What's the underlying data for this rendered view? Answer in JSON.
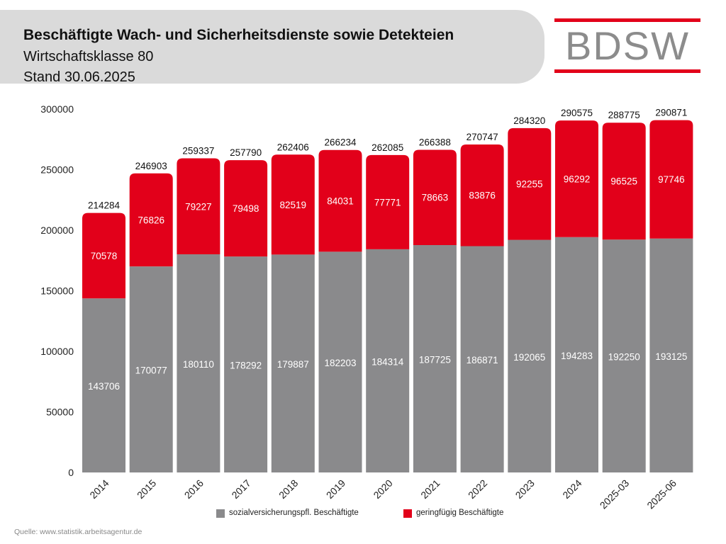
{
  "header": {
    "title": "Beschäftigte Wach- und Sicherheitsdienste sowie Detekteien",
    "subtitle": "Wirtschaftsklasse 80",
    "date": "Stand 30.06.2025"
  },
  "logo": {
    "text": "BDSW"
  },
  "source": "Quelle: www.statistik.arbeitsagentur.de",
  "colors": {
    "primary": "#8a8a8c",
    "secondary": "#e2001a",
    "header_bg": "#dadada"
  },
  "chart_data": {
    "type": "bar",
    "stacked": true,
    "title": "Beschäftigte Wach- und Sicherheitsdienste sowie Detekteien",
    "xlabel": "",
    "ylabel": "",
    "ylim": [
      0,
      300000
    ],
    "yticks": [
      0,
      50000,
      100000,
      150000,
      200000,
      250000,
      300000
    ],
    "grid": false,
    "legend_position": "bottom-center",
    "categories": [
      "2014",
      "2015",
      "2016",
      "2017",
      "2018",
      "2019",
      "2020",
      "2021",
      "2022",
      "2023",
      "2024",
      "2025-03",
      "2025-06"
    ],
    "series": [
      {
        "name": "sozialversicherungspfl. Beschäftigte",
        "color": "#8a8a8c",
        "values": [
          143706,
          170077,
          180110,
          178292,
          179887,
          182203,
          184314,
          187725,
          186871,
          192065,
          194283,
          192250,
          193125
        ]
      },
      {
        "name": "geringfügig Beschäftigte",
        "color": "#e2001a",
        "values": [
          70578,
          76826,
          79227,
          79498,
          82519,
          84031,
          77771,
          78663,
          83876,
          92255,
          96292,
          96525,
          97746
        ]
      }
    ],
    "totals": [
      214284,
      246903,
      259337,
      257790,
      262406,
      266234,
      262085,
      266388,
      270747,
      284320,
      290575,
      288775,
      290871
    ]
  }
}
